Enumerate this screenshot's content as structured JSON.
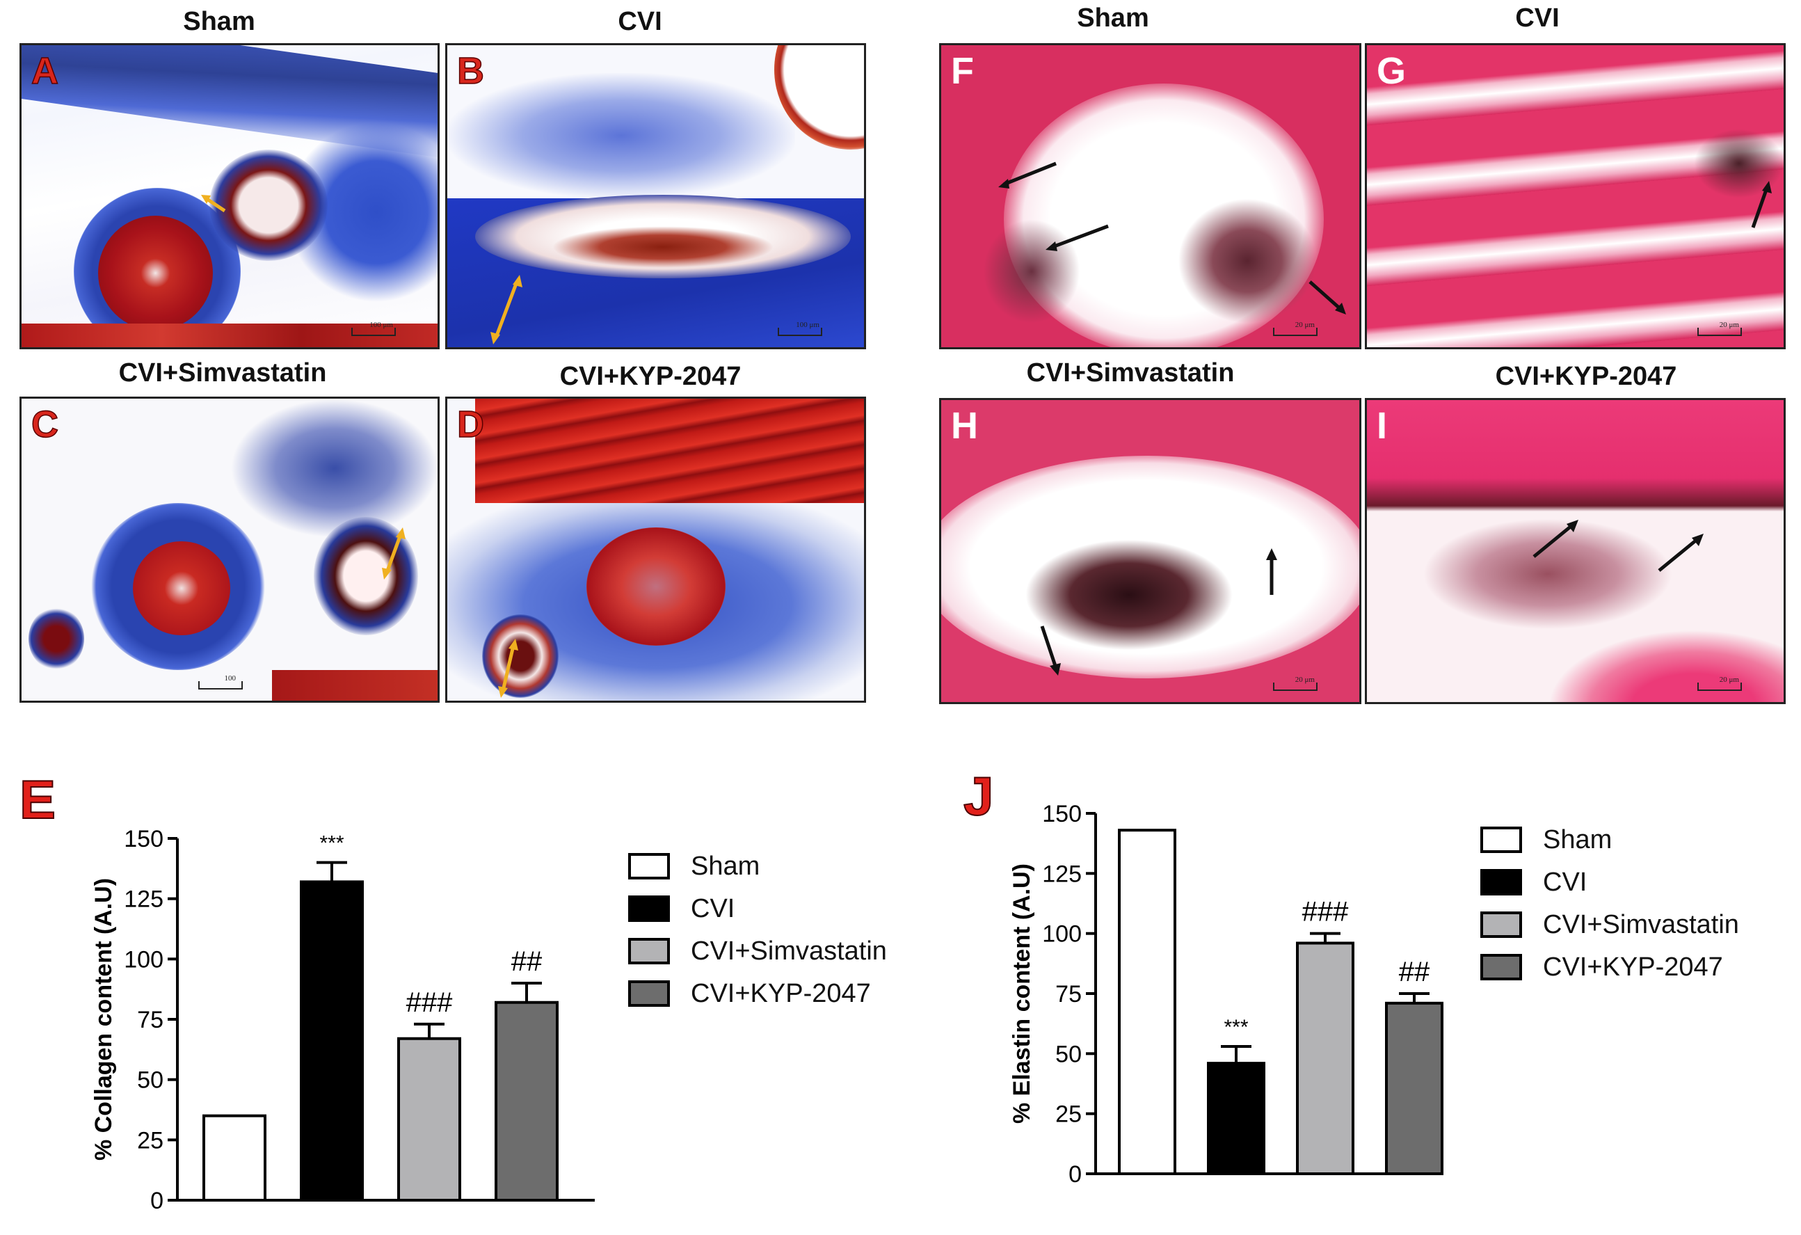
{
  "panels": {
    "A": {
      "letter": "A",
      "title": "Sham",
      "scale": "100 μm"
    },
    "B": {
      "letter": "B",
      "title": "CVI",
      "scale": "100 μm"
    },
    "C": {
      "letter": "C",
      "title": "CVI+Simvastatin",
      "scale": "100"
    },
    "D": {
      "letter": "D",
      "title": "CVI+KYP-2047",
      "scale": ""
    },
    "F": {
      "letter": "F",
      "title": "Sham",
      "scale": "20 μm"
    },
    "G": {
      "letter": "G",
      "title": "CVI",
      "scale": "20 μm"
    },
    "H": {
      "letter": "H",
      "title": "CVI+Simvastatin",
      "scale": "20 μm"
    },
    "I": {
      "letter": "I",
      "title": "CVI+KYP-2047",
      "scale": "20 μm"
    }
  },
  "chart_labels": {
    "E": "E",
    "J": "J"
  },
  "colors": {
    "sham": "#ffffff",
    "cvi": "#000000",
    "simva": "#b3b3b5",
    "kyp": "#6d6d6d",
    "trichrome_blue": "#2947b8",
    "trichrome_red": "#b3161a",
    "vg_pink": "#e0306a"
  },
  "chart_data": [
    {
      "type": "bar",
      "panel": "E",
      "ylabel": "% Collagen content (A.U)",
      "yticks": [
        "0",
        "25",
        "50",
        "75",
        "100",
        "125",
        "150"
      ],
      "ylim": [
        0,
        150
      ],
      "categories": [
        "Sham",
        "CVI",
        "CVI+Simvastatin",
        "CVI+KYP-2047"
      ],
      "values": [
        35,
        132,
        67,
        82
      ],
      "errors": [
        0,
        8,
        6,
        8
      ],
      "annotations": [
        "",
        "***",
        "###",
        "##"
      ],
      "legend": [
        "Sham",
        "CVI",
        "CVI+Simvastatin",
        "CVI+KYP-2047"
      ],
      "legend_position": "right"
    },
    {
      "type": "bar",
      "panel": "J",
      "ylabel": "% Elastin content (A.U)",
      "yticks": [
        "0",
        "25",
        "50",
        "75",
        "100",
        "125",
        "150"
      ],
      "ylim": [
        0,
        150
      ],
      "categories": [
        "Sham",
        "CVI",
        "CVI+Simvastatin",
        "CVI+KYP-2047"
      ],
      "values": [
        143,
        46,
        96,
        71
      ],
      "errors": [
        0,
        7,
        4,
        4
      ],
      "annotations": [
        "",
        "***",
        "###",
        "##"
      ],
      "legend": [
        "Sham",
        "CVI",
        "CVI+Simvastatin",
        "CVI+KYP-2047"
      ],
      "legend_position": "right"
    }
  ]
}
